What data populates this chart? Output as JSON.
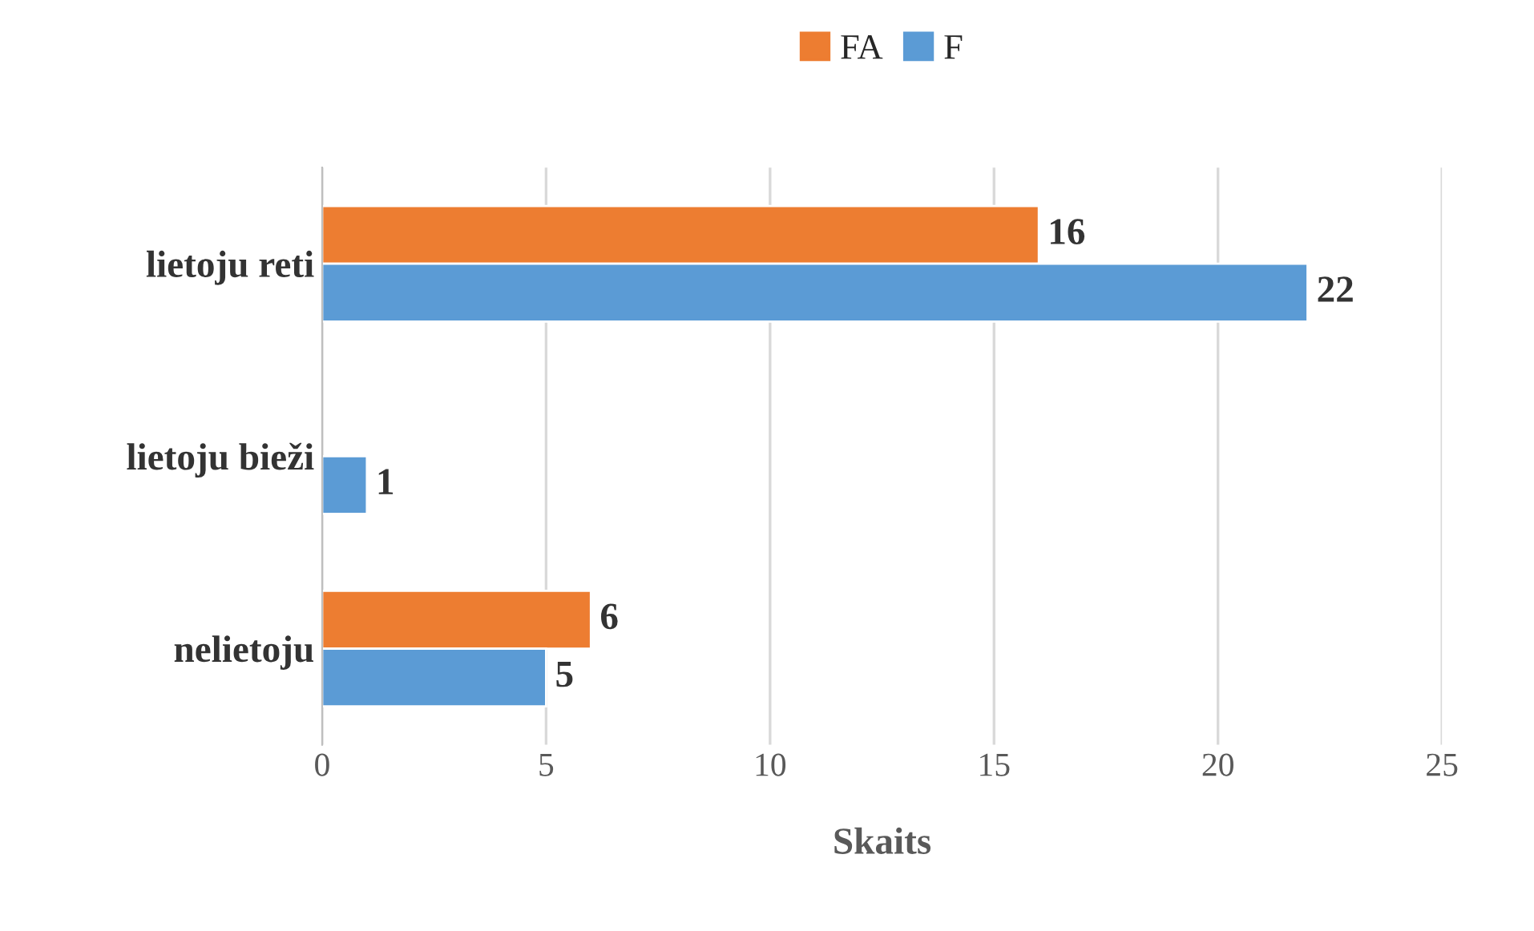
{
  "chart_data": {
    "type": "bar",
    "orientation": "horizontal",
    "xlabel": "Skaits",
    "categories": [
      "lietoju reti",
      "lietoju bieži",
      "nelietoju"
    ],
    "series": [
      {
        "name": "FA",
        "color": "#ed7d31",
        "values": [
          16,
          null,
          6
        ],
        "value_labels": [
          "16",
          null,
          "6"
        ]
      },
      {
        "name": "F",
        "color": "#5b9bd5",
        "values": [
          22,
          1,
          5
        ],
        "value_labels": [
          "22",
          "1",
          "5"
        ]
      }
    ],
    "xlim": [
      0,
      25
    ],
    "xticks": [
      0,
      5,
      10,
      15,
      20,
      25
    ],
    "grid": "x",
    "legend": "top"
  }
}
